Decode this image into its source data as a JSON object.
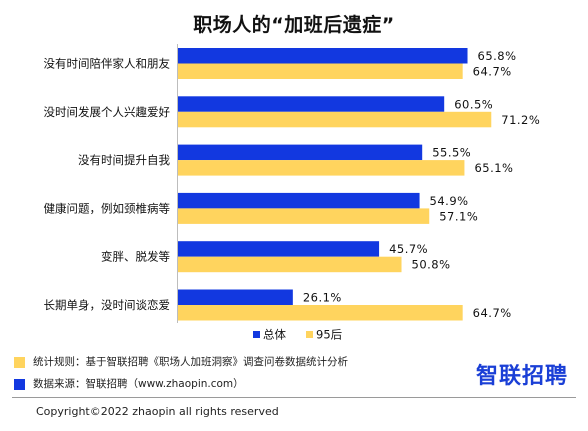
{
  "chart_data": {
    "type": "bar",
    "orientation": "horizontal",
    "title": "职场人的“加班后遗症”",
    "categories": [
      "没有时间陪伴家人和朋友",
      "没时间发展个人兴趣爱好",
      "没有时间提升自我",
      "健康问题，例如颈椎病等",
      "变胖、脱发等",
      "长期单身，没时间谈恋爱"
    ],
    "series": [
      {
        "name": "总体",
        "values": [
          65.8,
          60.5,
          55.5,
          54.9,
          45.7,
          26.1
        ],
        "value_labels": [
          "65.8%",
          "60.5%",
          "55.5%",
          "54.9%",
          "45.7%",
          "26.1%"
        ]
      },
      {
        "name": "95后",
        "values": [
          64.7,
          71.2,
          65.1,
          57.1,
          50.8,
          64.7
        ],
        "value_labels": [
          "64.7%",
          "71.2%",
          "65.1%",
          "57.1%",
          "50.8%",
          "64.7%"
        ]
      }
    ],
    "xlim": [
      0,
      100
    ],
    "grid": false,
    "legend_position": "bottom"
  },
  "colors": {
    "overall": "#1238e0",
    "gen95": "#ffd45e"
  },
  "notes": [
    {
      "color": "#ffd45e",
      "text": "统计规则：基于智联招聘《职场人加班洞察》调查问卷数据统计分析"
    },
    {
      "color": "#1238e0",
      "text": "数据来源：智联招聘（www.zhaopin.com）"
    }
  ],
  "brand": "智联招聘",
  "copyright": "Copyright©2022 zhaopin all rights reserved"
}
